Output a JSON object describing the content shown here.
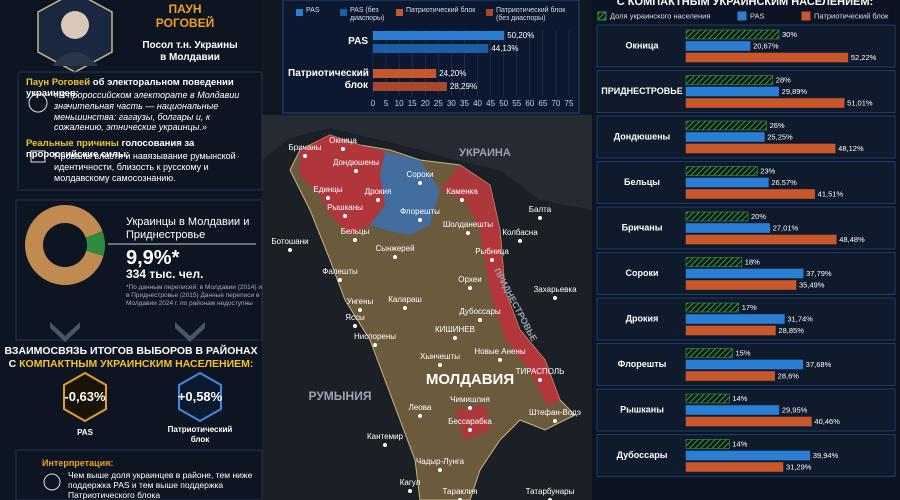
{
  "speaker": {
    "name": [
      "ПАУН",
      "РОГОВЕЙ"
    ],
    "position": [
      "Посол т.н. Украины",
      "в Молдавии"
    ]
  },
  "statement": {
    "author": "Паун Роговей",
    "lead": "об электоральном поведении украинцев:",
    "quote": "«В пророссийском электорате в Молдавии значительная часть — национальные меньшинства: гагаузы, болгары и, к сожалению, этнические украинцы.»"
  },
  "reasons": {
    "highlight": "Реальные причины",
    "lead": "голосования за пророссийские силы:",
    "text": "Провалы власти и навязывание румынской идентичности, близость к русскому и молдавскому самосознанию."
  },
  "ukrainians": {
    "title": "Украинцы в Молдавии и Приднестровье",
    "share": 9.9,
    "share_label": "9,9%*",
    "count": "334 тыс. чел.",
    "footnote": "*По данным переписей: в Молдавии (2014) и в Приднестровье (2015) Данные переписи в Молдавии 2024 г. по районам недоступны"
  },
  "correlation": {
    "title": "ВЗАИМОСВЯЗЬ ИТОГОВ ВЫБОРОВ В РАЙОНАХ",
    "title_prefix": "С",
    "title_highlight": "КОМПАКТНЫМ УКРАИНСКИМ НАСЕЛЕНИЕМ:",
    "items": [
      {
        "label": "-0,63%",
        "name": "PAS"
      },
      {
        "label": "+0,58%",
        "name": "Патриотический блок"
      }
    ]
  },
  "interpretation": {
    "title": "Интерпретация:",
    "text": "Чем выше доля украинцев в районе, тем ниже поддержка PAS и тем выше поддержка Патриотического блока"
  },
  "map": {
    "countries": [
      "УКРАИНА",
      "РУМЫНИЯ",
      "МОЛДАВИЯ",
      "ПРИДНЕСТРОВЬЕ"
    ],
    "places": [
      "Бричаны",
      "Окница",
      "Дондюшены",
      "Единцы",
      "Дрокия",
      "Сороки",
      "Каменка",
      "Рышканы",
      "Флорешты",
      "Бельцы",
      "Шолданешты",
      "Колбасна",
      "Сынжерей",
      "Рыбница",
      "Ботошани",
      "Балта",
      "Фалешты",
      "Орхеи",
      "Захарьевка",
      "Унгены",
      "Калараш",
      "Дубоссары",
      "Яссы",
      "Ниспорены",
      "КИШИНЕВ",
      "Хынчешты",
      "Новые Анены",
      "ТИРАСПОЛЬ",
      "Чимишлия",
      "Леова",
      "Штефан-Водэ",
      "Бессарабка",
      "Кантемир",
      "Чадыр-Лунга",
      "Кагул",
      "Тараклия",
      "Татарбунары"
    ]
  },
  "chart_data": [
    {
      "type": "bar",
      "orientation": "horizontal",
      "categories": [
        "PAS",
        "Патриотический блок"
      ],
      "series": [
        {
          "name": "PAS",
          "color": "#2a7fd4",
          "values": [
            50.2,
            null
          ],
          "value_labels": [
            "50,20%",
            null
          ]
        },
        {
          "name": "PAS (без диаспоры)",
          "color": "#1b5ea8",
          "values": [
            44.13,
            null
          ],
          "value_labels": [
            "44,13%",
            null
          ]
        },
        {
          "name": "Патриотический блок",
          "color": "#c8582c",
          "values": [
            null,
            24.2
          ],
          "value_labels": [
            null,
            "24,20%"
          ]
        },
        {
          "name": "Патриотический блок (без диаспоры)",
          "color": "#a8482a",
          "values": [
            null,
            28.29
          ],
          "value_labels": [
            null,
            "28,29%"
          ]
        }
      ],
      "xlim": [
        0,
        75
      ],
      "xticks": [
        0,
        5,
        10,
        15,
        20,
        25,
        30,
        35,
        40,
        45,
        50,
        55,
        60,
        65,
        70,
        75
      ],
      "grid": true
    },
    {
      "type": "bar",
      "orientation": "horizontal",
      "title": "С КОМПАКТНЫМ УКРАИНСКИМ НАСЕЛЕНИЕМ:",
      "categories": [
        "Окница",
        "ПРИДНЕСТРОВЬЕ",
        "Дондюшены",
        "Бельцы",
        "Бричаны",
        "Сороки",
        "Дрокия",
        "Флорешты",
        "Рышканы",
        "Дубоссары"
      ],
      "series": [
        {
          "name": "Доля украинского населения",
          "color": "#3a9a4a",
          "pattern": "hatch",
          "values": [
            30,
            28,
            26,
            23,
            20,
            18,
            17,
            15,
            14,
            14
          ],
          "value_labels": [
            "30%",
            "28%",
            "26%",
            "23%",
            "20%",
            "18%",
            "17%",
            "15%",
            "14%",
            "14%"
          ]
        },
        {
          "name": "PAS",
          "color": "#2a7fd4",
          "values": [
            20.67,
            29.89,
            25.25,
            26.57,
            27.01,
            37.79,
            31.74,
            37.68,
            29.95,
            39.94
          ],
          "value_labels": [
            "20,67%",
            "29,89%",
            "25,25%",
            "26,57%",
            "27,01%",
            "37,79%",
            "31,74%",
            "37,68%",
            "29,95%",
            "39,94%"
          ]
        },
        {
          "name": "Патриотический блок",
          "color": "#c8582c",
          "values": [
            52.22,
            51.01,
            48.12,
            41.51,
            48.48,
            35.49,
            28.85,
            28.6,
            40.46,
            31.29
          ],
          "value_labels": [
            "52,22%",
            "51,01%",
            "48,12%",
            "41,51%",
            "48,48%",
            "35,49%",
            "28,85%",
            "28,6%",
            "40,46%",
            "31,29%"
          ]
        }
      ]
    }
  ]
}
